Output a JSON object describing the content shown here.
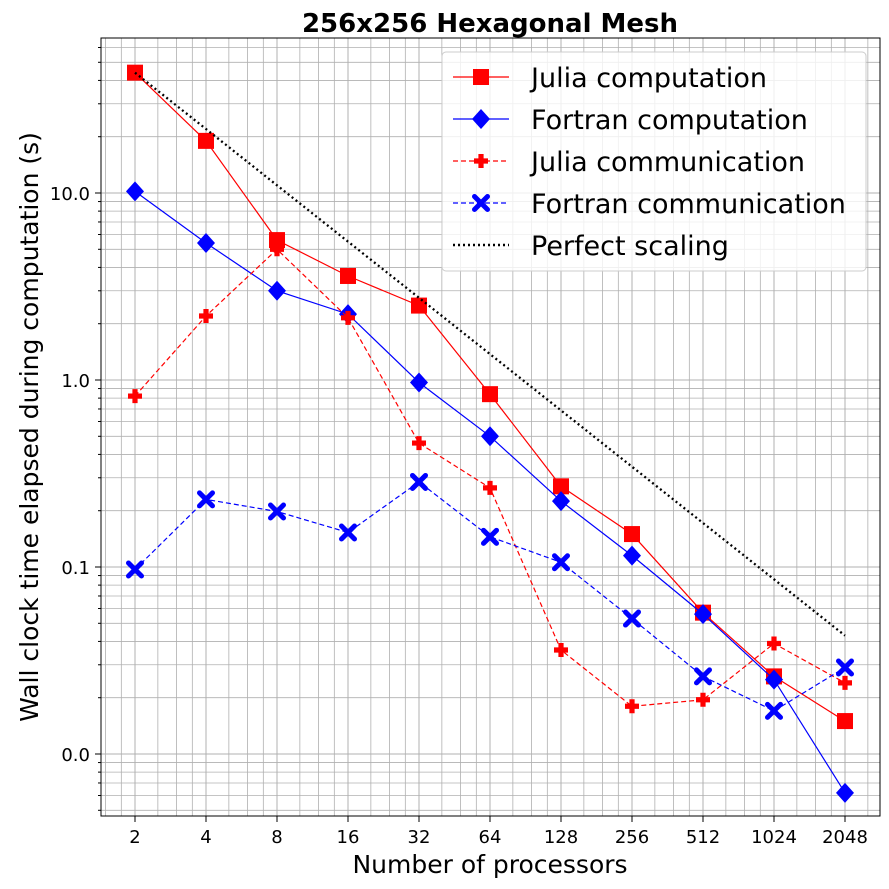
{
  "chart_data": {
    "type": "line",
    "title": "256x256 Hexagonal Mesh",
    "xlabel": "Number of processors",
    "ylabel": "Wall clock time elapsed during computation (s)",
    "x_scale": "log2",
    "y_scale": "log10",
    "x": [
      2,
      4,
      8,
      16,
      32,
      64,
      128,
      256,
      512,
      1024,
      2048
    ],
    "x_tick_labels": [
      "2",
      "4",
      "8",
      "16",
      "32",
      "64",
      "128",
      "256",
      "512",
      "1024",
      "2048"
    ],
    "y_ticks": [
      0.01,
      0.1,
      1,
      10
    ],
    "y_tick_labels": [
      "0.0",
      "0.1",
      "1.0",
      "10.0"
    ],
    "ylim": [
      0.0036,
      70
    ],
    "grid": true,
    "legend_position": "top-right",
    "series": [
      {
        "name": "Julia computation",
        "color": "#ff0000",
        "style": "solid",
        "marker": "square",
        "values": [
          44,
          19,
          5.6,
          3.6,
          2.5,
          0.84,
          0.27,
          0.15,
          0.057,
          0.026,
          0.015
        ]
      },
      {
        "name": "Fortran computation",
        "color": "#0000ff",
        "style": "solid",
        "marker": "diamond",
        "values": [
          10.2,
          5.4,
          3.0,
          2.25,
          0.97,
          0.5,
          0.225,
          0.115,
          0.056,
          0.025,
          0.0062
        ]
      },
      {
        "name": "Julia communication",
        "color": "#ff0000",
        "style": "dashed",
        "marker": "plus",
        "values": [
          0.82,
          2.2,
          5.0,
          2.15,
          0.46,
          0.265,
          0.036,
          0.018,
          0.0195,
          0.039,
          0.024
        ]
      },
      {
        "name": "Fortran communication",
        "color": "#0000ff",
        "style": "dashed",
        "marker": "x",
        "values": [
          0.097,
          0.23,
          0.198,
          0.153,
          0.285,
          0.145,
          0.106,
          0.053,
          0.026,
          0.017,
          0.029
        ]
      },
      {
        "name": "Perfect scaling",
        "color": "#000000",
        "style": "dotted",
        "marker": "none",
        "values": [
          44,
          22,
          11,
          5.5,
          2.75,
          1.375,
          0.6875,
          0.34375,
          0.171875,
          0.0859375,
          0.04296875
        ]
      }
    ]
  }
}
